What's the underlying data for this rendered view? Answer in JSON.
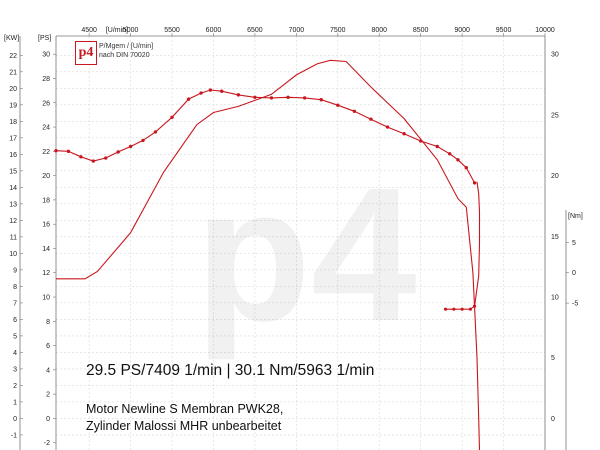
{
  "logo": {
    "mark": "p4",
    "caption1": "P/Mgem / [U/min]",
    "caption2": "nach DIN 70020"
  },
  "headline": "29.5 PS/7409 1/min | 30.1 Nm/5963 1/min",
  "description": [
    "Motor Newline S Membran PWK28,",
    "Zylinder Malossi MHR unbearbeitet"
  ],
  "colors": {
    "curve": "#c8171e",
    "grid": "#d8d8d8",
    "text": "#111111"
  },
  "chart_data": {
    "type": "line",
    "xlabel": "[U/min]",
    "x_ticks": [
      4500,
      5000,
      5500,
      6000,
      6500,
      7000,
      7500,
      8000,
      8500,
      9000,
      9500,
      10000
    ],
    "xlim": [
      4100,
      10000
    ],
    "left_axis_kw": {
      "unit": "[KW]",
      "ticks": [
        -2,
        -1,
        0,
        1,
        2,
        3,
        4,
        5,
        6,
        7,
        8,
        9,
        10,
        11,
        12,
        13,
        14,
        15,
        16,
        17,
        18,
        19,
        20,
        21,
        22
      ]
    },
    "left_axis_ps": {
      "unit": "[PS]",
      "ticks": [
        -2,
        0,
        2,
        4,
        6,
        8,
        10,
        12,
        14,
        16,
        18,
        20,
        22,
        24,
        26,
        28,
        30
      ]
    },
    "right_axis_ps": {
      "ticks": [
        -5,
        0,
        5,
        10,
        15,
        20,
        25,
        30
      ]
    },
    "right_axis_nm": {
      "unit": "[Nm]",
      "ticks": [
        -5,
        0,
        5,
        10,
        15,
        20,
        25,
        30
      ]
    },
    "ylim_ps": [
      -2.6,
      31.5
    ],
    "series": [
      {
        "quantity": "power_ps",
        "x": [
          4100,
          4450,
          4600,
          5000,
          5400,
          5800,
          6000,
          6300,
          6700,
          7000,
          7250,
          7409,
          7600,
          7900,
          8300,
          8700,
          8950,
          9050,
          9130,
          9180,
          9200,
          9210,
          9210
        ],
        "y": [
          11.5,
          11.5,
          12.1,
          15.3,
          20.3,
          24.2,
          25.2,
          25.7,
          26.7,
          28.3,
          29.2,
          29.5,
          29.4,
          27.3,
          24.7,
          21.3,
          18.1,
          17.4,
          12.0,
          5.0,
          0.0,
          -2.6,
          -2.6
        ]
      },
      {
        "quantity": "torque_nm",
        "x": [
          4100,
          4250,
          4400,
          4550,
          4700,
          4850,
          5000,
          5150,
          5300,
          5500,
          5700,
          5850,
          5963,
          6100,
          6300,
          6500,
          6700,
          6900,
          7100,
          7300,
          7500,
          7700,
          7900,
          8100,
          8300,
          8500,
          8700,
          8850,
          8950,
          9050,
          9150
        ],
        "y": [
          20.1,
          20.0,
          19.1,
          18.4,
          18.9,
          19.9,
          20.8,
          21.8,
          23.2,
          25.6,
          28.6,
          29.6,
          30.1,
          29.9,
          29.3,
          28.9,
          28.8,
          28.9,
          28.8,
          28.5,
          27.6,
          26.6,
          25.3,
          24.0,
          22.9,
          21.7,
          20.8,
          19.6,
          18.6,
          17.3,
          14.8
        ]
      },
      {
        "quantity": "torque_nm_rundown",
        "x": [
          8800,
          8900,
          9000,
          9100,
          9150,
          9200,
          9210,
          9210,
          9200,
          9180
        ],
        "y": [
          -6.0,
          -6.0,
          -6.0,
          -6.0,
          -5.5,
          -0.5,
          5.0,
          10.0,
          13.0,
          15.0
        ]
      }
    ]
  }
}
